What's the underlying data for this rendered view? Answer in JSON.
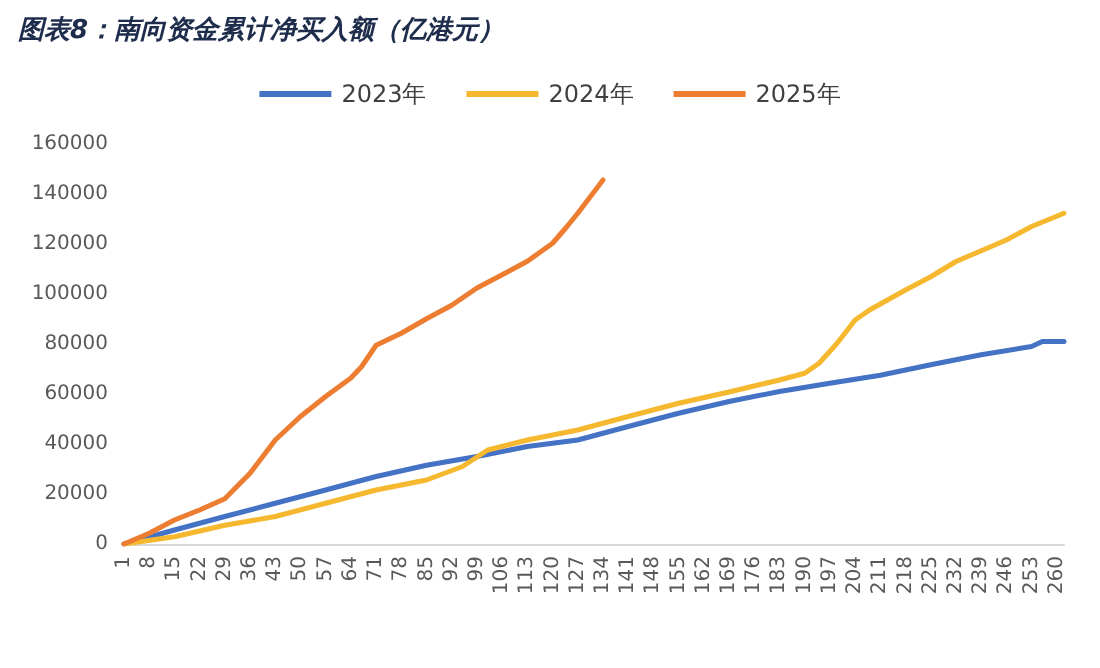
{
  "chart_data": {
    "type": "line",
    "title": "图表8：南向资金累计净买入额（亿港元）",
    "legend": "top",
    "grid": false,
    "marker": "none",
    "line_style": "solid",
    "xlim": [
      1,
      262
    ],
    "xticks": [
      1,
      8,
      15,
      22,
      29,
      36,
      43,
      50,
      57,
      64,
      71,
      78,
      85,
      92,
      99,
      106,
      113,
      120,
      127,
      134,
      141,
      148,
      155,
      162,
      169,
      176,
      183,
      190,
      197,
      204,
      211,
      218,
      225,
      232,
      239,
      246,
      253,
      260
    ],
    "ylim": [
      0,
      160000
    ],
    "yticks": [
      0,
      20000,
      40000,
      60000,
      80000,
      100000,
      120000,
      140000,
      160000
    ],
    "series": [
      {
        "name": "2023年",
        "color": "#4472c4",
        "x": [
          1,
          15,
          29,
          43,
          57,
          71,
          85,
          99,
          113,
          127,
          141,
          155,
          169,
          183,
          197,
          211,
          225,
          239,
          253,
          256,
          262
        ],
        "values": [
          0,
          5600,
          11000,
          16300,
          21600,
          27000,
          31500,
          35000,
          39000,
          41600,
          47000,
          52300,
          57000,
          61000,
          64300,
          67500,
          71700,
          75700,
          79000,
          81000,
          81000
        ]
      },
      {
        "name": "2024年",
        "color": "#f5b82e",
        "x": [
          1,
          15,
          29,
          43,
          57,
          71,
          85,
          95,
          102,
          113,
          127,
          141,
          155,
          169,
          183,
          190,
          194,
          199,
          204,
          208,
          218,
          225,
          232,
          246,
          253,
          262
        ],
        "values": [
          0,
          2900,
          7500,
          11000,
          16300,
          21600,
          25600,
          31000,
          37600,
          41600,
          45600,
          51000,
          56300,
          60800,
          65600,
          68300,
          72300,
          80300,
          89600,
          93600,
          101600,
          106900,
          113000,
          121600,
          127000,
          132300
        ]
      },
      {
        "name": "2025年",
        "color": "#ed7d31",
        "x": [
          1,
          8,
          15,
          22,
          29,
          36,
          43,
          50,
          57,
          64,
          67,
          71,
          78,
          85,
          92,
          99,
          106,
          113,
          120,
          124,
          127,
          134
        ],
        "values": [
          0,
          4300,
          9600,
          13600,
          18100,
          28300,
          41600,
          51000,
          59000,
          66400,
          71000,
          79500,
          84300,
          90100,
          95500,
          102400,
          107700,
          113100,
          120300,
          127000,
          132300,
          145600
        ]
      }
    ]
  }
}
